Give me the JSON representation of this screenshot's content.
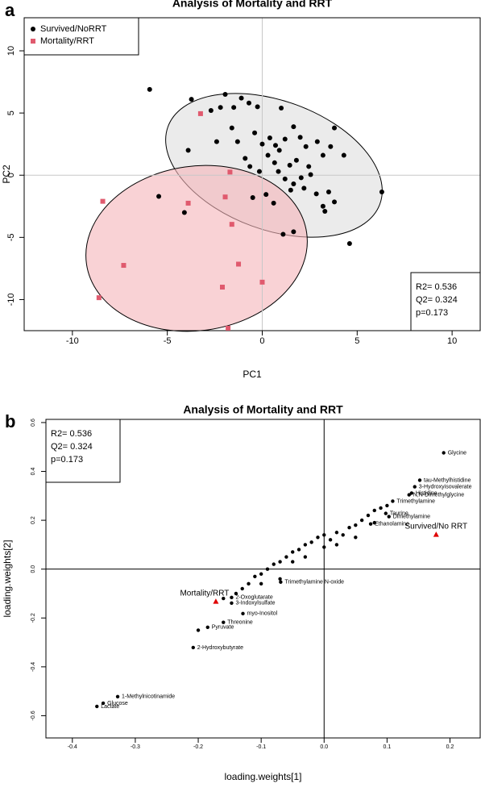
{
  "chart_data": [
    {
      "type": "scatter",
      "panel": "a",
      "title": "Analysis of Mortality and RRT",
      "x_label": "PC1",
      "y_label": "PC2",
      "xlim": [
        -12.54,
        11.48
      ],
      "ylim": [
        -12.5,
        12.66
      ],
      "xticks": [
        -10,
        -5,
        0,
        5,
        10
      ],
      "yticks": [
        -10,
        -5,
        0,
        5,
        10
      ],
      "zero_lines": true,
      "zero_line_color": "#c8c8c8",
      "legend": "top-left",
      "annotations": [
        "R2= 0.536",
        "Q2= 0.324",
        "p=0.173"
      ],
      "annotation_corner": "bottom-right",
      "series": [
        {
          "name": "Survived/NoRRT",
          "color": "#000000",
          "marker": "circle",
          "x": [
            -5.93,
            -3.73,
            -1.95,
            -1.1,
            -2.7,
            -2.2,
            -1.5,
            -0.7,
            -0.25,
            1.0,
            3.8,
            -3.9,
            -2.4,
            -1.6,
            -1.3,
            -0.4,
            0,
            0.4,
            0.7,
            0.9,
            1.2,
            1.65,
            2.0,
            2.3,
            2.9,
            3.2,
            3.6,
            4.3,
            -0.9,
            -0.65,
            -0.15,
            0.3,
            0.65,
            0.85,
            1.45,
            1.8,
            2.45,
            2.55,
            2.05,
            1.65,
            1.2,
            1.5,
            2.2,
            2.85,
            3.5,
            3.8,
            3.2,
            3.3,
            6.3,
            -0.5,
            0.2,
            0.6,
            -5.45,
            -4.1,
            1.1,
            1.65,
            4.6
          ],
          "values": [
            6.9,
            6.1,
            6.5,
            6.2,
            5.2,
            5.45,
            5.45,
            5.8,
            5.5,
            5.4,
            3.8,
            2.0,
            2.7,
            3.8,
            2.7,
            3.4,
            2.5,
            3.0,
            2.4,
            2.0,
            2.9,
            3.9,
            3.05,
            2.3,
            2.7,
            1.6,
            2.3,
            1.6,
            1.35,
            0.7,
            0.3,
            1.6,
            1.0,
            0.3,
            0.8,
            1.2,
            0.7,
            0.05,
            -0.2,
            -0.7,
            -0.3,
            -1.2,
            -1.05,
            -1.5,
            -1.35,
            -2.15,
            -2.5,
            -2.9,
            -1.35,
            -1.8,
            -1.55,
            -2.25,
            -1.7,
            -3.0,
            -4.75,
            -4.55,
            -5.5
          ]
        },
        {
          "name": "Mortality/RRT",
          "color": "#e05a6e",
          "marker": "square",
          "x": [
            -3.25,
            -1.7,
            -8.4,
            -3.9,
            -1.95,
            -1.6,
            -7.3,
            -1.25,
            0,
            -2.1,
            -8.6,
            -1.8
          ],
          "values": [
            4.95,
            0.25,
            -2.1,
            -2.25,
            -1.75,
            -3.95,
            -7.25,
            -7.15,
            -8.6,
            -9.0,
            -9.85,
            -12.3
          ]
        }
      ]
    },
    {
      "type": "scatter",
      "panel": "b",
      "title": "Analysis of Mortality and RRT",
      "x_label": "loading.weights[1]",
      "y_label": "loading.weights[2]",
      "xlim": [
        -0.442,
        0.248
      ],
      "ylim": [
        -0.691,
        0.613
      ],
      "xticks": [
        -0.4,
        -0.3,
        -0.2,
        -0.1,
        {
          "value": 0,
          "label": "0.0"
        },
        0.1,
        0.2
      ],
      "yticks": [
        -0.6,
        -0.4,
        -0.2,
        {
          "value": 0,
          "label": "0.0"
        },
        0.2,
        0.4,
        0.6
      ],
      "zero_lines": true,
      "zero_line_color": "#000000",
      "annotations": [
        "R2= 0.536",
        "Q2= 0.324",
        "p=0.173"
      ],
      "annotation_corner": "top-left",
      "series": [
        {
          "color": "#000000",
          "marker": "circle",
          "labels": [
            "Glycine",
            "tau-Methylhistidine",
            "3-Hydroxyisovalerate",
            "Histidine",
            "N,N-Dimethylglycine",
            "Trimethylamine",
            "Taurine",
            "Dimethylamine",
            "Ethanolamine",
            "myo-Inositol",
            "Threonine",
            "Pyruvate",
            "2-Hydroxybutyrate",
            "1-Methylnicotinamide",
            "Glucose",
            "Lactate",
            "2-Oxoglutarate",
            "3-Indoxylsulfate",
            "Trimethylamine N-oxide",
            null,
            null,
            null,
            null,
            null,
            null,
            null,
            null,
            null,
            null,
            null,
            null,
            null,
            null,
            null,
            null,
            null,
            null,
            null,
            null,
            null,
            null,
            null,
            null,
            null,
            null,
            null,
            null,
            null,
            null,
            null,
            null,
            null,
            null,
            null
          ],
          "x": [
            0.19,
            0.152,
            0.144,
            0.139,
            0.135,
            0.109,
            0.098,
            0.103,
            0.074,
            -0.129,
            -0.16,
            -0.185,
            -0.208,
            -0.328,
            -0.351,
            -0.361,
            -0.147,
            -0.147,
            -0.069,
            -0.12,
            -0.11,
            -0.1,
            -0.09,
            -0.08,
            -0.07,
            -0.06,
            -0.05,
            -0.04,
            -0.03,
            -0.02,
            -0.01,
            0.0,
            0.01,
            0.02,
            0.03,
            0.04,
            0.05,
            0.06,
            0.07,
            0.08,
            0.09,
            0.1,
            -0.05,
            -0.03,
            0.0,
            0.02,
            -0.13,
            -0.14,
            -0.16,
            -0.1,
            -0.07,
            -0.2,
            0.05,
            0.08
          ],
          "values": [
            0.476,
            0.364,
            0.337,
            0.311,
            0.304,
            0.278,
            0.228,
            0.215,
            0.185,
            -0.182,
            -0.218,
            -0.238,
            -0.321,
            -0.522,
            -0.549,
            -0.562,
            -0.116,
            -0.139,
            -0.053,
            -0.06,
            -0.03,
            -0.02,
            0.0,
            0.02,
            0.03,
            0.05,
            0.07,
            0.08,
            0.1,
            0.11,
            0.13,
            0.14,
            0.12,
            0.15,
            0.14,
            0.17,
            0.18,
            0.2,
            0.22,
            0.24,
            0.25,
            0.26,
            0.03,
            0.05,
            0.09,
            0.1,
            -0.08,
            -0.1,
            -0.12,
            -0.06,
            -0.04,
            -0.25,
            0.13,
            0.19
          ]
        },
        {
          "color": "#e00000",
          "marker": "triangle",
          "labels": [
            "Mortality/RRT",
            "Survived/No RRT"
          ],
          "x": [
            -0.172,
            0.178
          ],
          "values": [
            -0.132,
            0.142
          ]
        }
      ]
    }
  ]
}
